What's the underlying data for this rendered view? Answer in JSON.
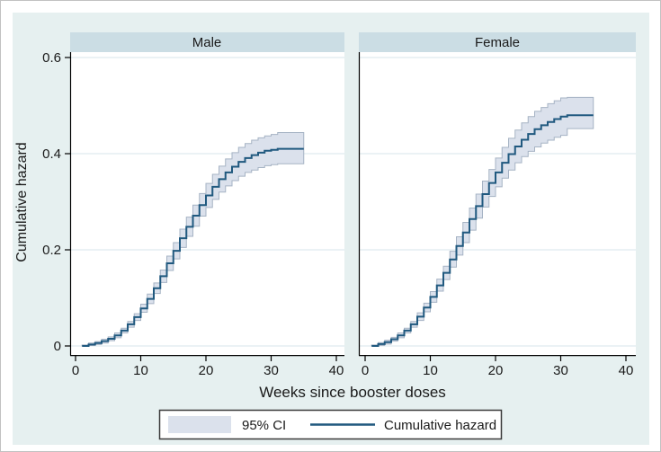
{
  "chart_data": {
    "type": "line",
    "subtype": "step-cumulative-hazard-with-ci",
    "title": "",
    "xlabel": "Weeks since booster doses",
    "ylabel": "Cumulative hazard",
    "xlim": [
      0,
      40
    ],
    "ylim": [
      0,
      0.6
    ],
    "xticks": [
      0,
      10,
      20,
      30,
      40
    ],
    "yticks": [
      0,
      0.2,
      0.4,
      0.6
    ],
    "ytick_labels": [
      "0",
      "0.2",
      "0.4",
      "0.6"
    ],
    "grid": true,
    "legend": {
      "position": "bottom-center",
      "items": [
        {
          "type": "area",
          "label": "95% CI"
        },
        {
          "type": "line",
          "label": "Cumulative hazard"
        }
      ]
    },
    "panels": [
      {
        "label": "Male",
        "weeks": [
          1,
          2,
          3,
          4,
          5,
          6,
          7,
          8,
          9,
          10,
          11,
          12,
          13,
          14,
          15,
          16,
          17,
          18,
          19,
          20,
          21,
          22,
          23,
          24,
          25,
          26,
          27,
          28,
          29,
          30,
          31,
          32,
          33,
          34,
          35
        ],
        "hazard": [
          0.0,
          0.003,
          0.006,
          0.01,
          0.015,
          0.022,
          0.032,
          0.045,
          0.06,
          0.078,
          0.098,
          0.12,
          0.145,
          0.172,
          0.198,
          0.224,
          0.248,
          0.271,
          0.293,
          0.313,
          0.331,
          0.347,
          0.361,
          0.373,
          0.383,
          0.391,
          0.397,
          0.402,
          0.406,
          0.408,
          0.41,
          0.41,
          0.41,
          0.41,
          0.41
        ],
        "ci_low": [
          0.0,
          0.001,
          0.003,
          0.006,
          0.011,
          0.017,
          0.027,
          0.039,
          0.053,
          0.07,
          0.088,
          0.109,
          0.132,
          0.157,
          0.181,
          0.205,
          0.228,
          0.249,
          0.27,
          0.288,
          0.305,
          0.32,
          0.333,
          0.344,
          0.353,
          0.361,
          0.366,
          0.371,
          0.375,
          0.377,
          0.379,
          0.379,
          0.379,
          0.379,
          0.379
        ],
        "ci_high": [
          0.002,
          0.006,
          0.009,
          0.014,
          0.019,
          0.027,
          0.037,
          0.051,
          0.067,
          0.087,
          0.108,
          0.131,
          0.158,
          0.187,
          0.215,
          0.243,
          0.268,
          0.293,
          0.317,
          0.338,
          0.357,
          0.374,
          0.389,
          0.402,
          0.413,
          0.421,
          0.428,
          0.433,
          0.437,
          0.44,
          0.444,
          0.444,
          0.444,
          0.444,
          0.444
        ]
      },
      {
        "label": "Female",
        "weeks": [
          1,
          2,
          3,
          4,
          5,
          6,
          7,
          8,
          9,
          10,
          11,
          12,
          13,
          14,
          15,
          16,
          17,
          18,
          19,
          20,
          21,
          22,
          23,
          24,
          25,
          26,
          27,
          28,
          29,
          30,
          31,
          32,
          33,
          34,
          35
        ],
        "hazard": [
          0.0,
          0.004,
          0.008,
          0.014,
          0.022,
          0.032,
          0.045,
          0.061,
          0.08,
          0.102,
          0.126,
          0.152,
          0.18,
          0.208,
          0.236,
          0.264,
          0.291,
          0.316,
          0.339,
          0.361,
          0.381,
          0.399,
          0.415,
          0.429,
          0.441,
          0.451,
          0.459,
          0.466,
          0.472,
          0.477,
          0.48,
          0.48,
          0.48,
          0.48,
          0.48
        ],
        "ci_low": [
          0.0,
          0.001,
          0.004,
          0.01,
          0.017,
          0.027,
          0.039,
          0.053,
          0.071,
          0.091,
          0.114,
          0.138,
          0.164,
          0.189,
          0.215,
          0.241,
          0.266,
          0.289,
          0.311,
          0.331,
          0.349,
          0.366,
          0.381,
          0.394,
          0.405,
          0.414,
          0.422,
          0.428,
          0.434,
          0.438,
          0.452,
          0.452,
          0.452,
          0.452,
          0.452
        ],
        "ci_high": [
          0.002,
          0.007,
          0.012,
          0.018,
          0.027,
          0.037,
          0.051,
          0.069,
          0.089,
          0.113,
          0.139,
          0.166,
          0.197,
          0.227,
          0.257,
          0.287,
          0.316,
          0.343,
          0.367,
          0.391,
          0.413,
          0.432,
          0.449,
          0.464,
          0.477,
          0.488,
          0.496,
          0.504,
          0.51,
          0.516,
          0.517,
          0.517,
          0.517,
          0.517,
          0.517
        ]
      }
    ]
  },
  "colors": {
    "figure_bg": "#e6f0f0",
    "panel_header_bg": "#cbdde4",
    "plot_bg": "#ffffff",
    "gridline": "#dfeaef",
    "axis": "#000000",
    "text": "#1a1a1a",
    "hazard_line": "#20597f",
    "ci_fill": "#dbe1ec",
    "ci_edge": "#a6b3c4",
    "legend_border": "#3a3a3a"
  }
}
